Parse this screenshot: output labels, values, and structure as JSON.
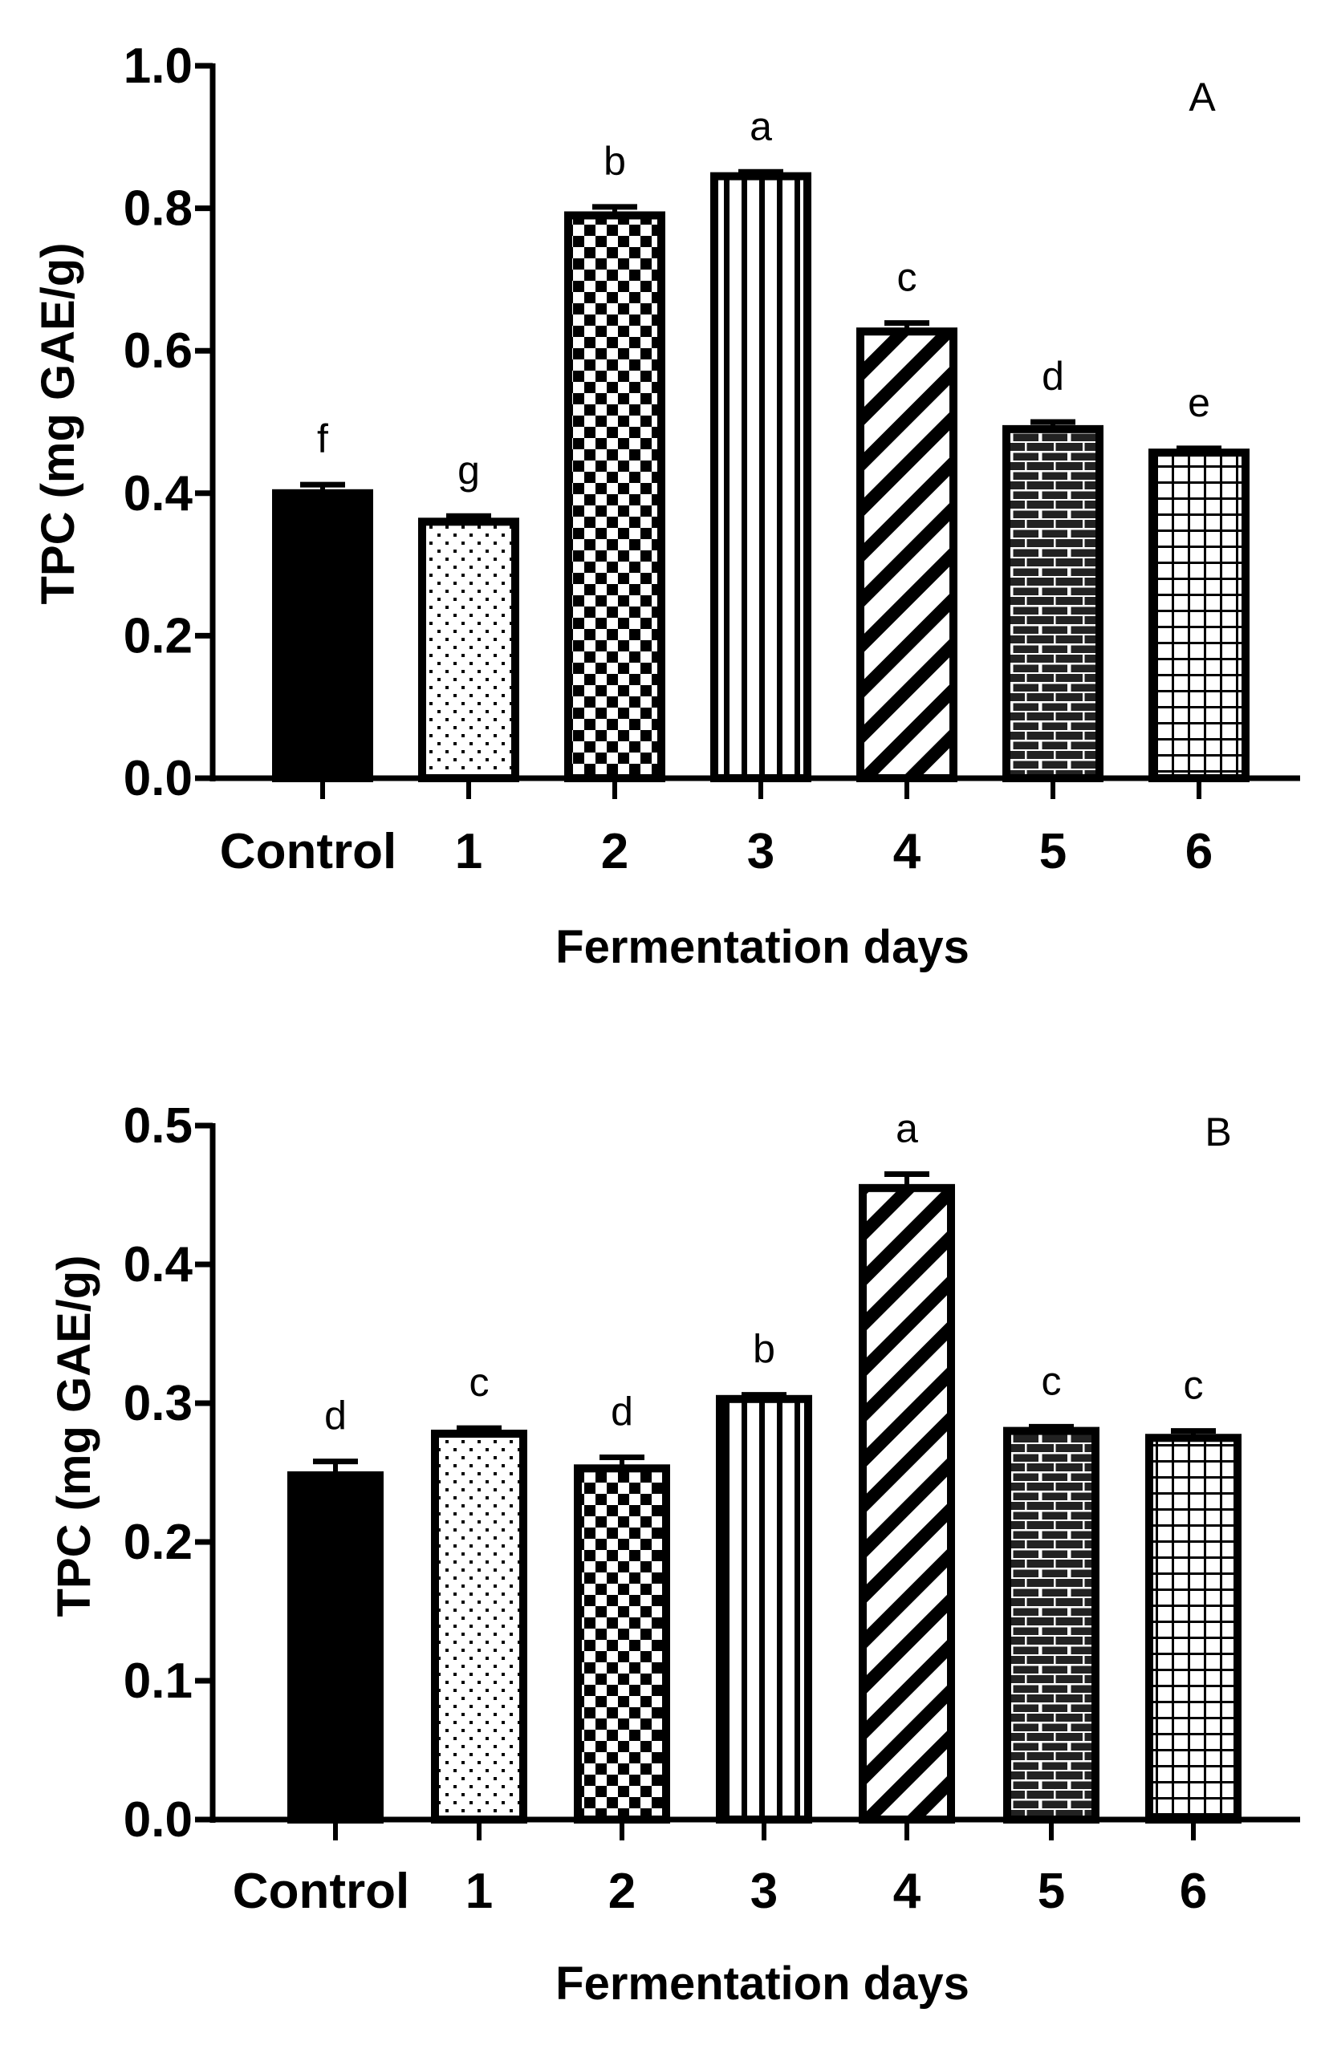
{
  "chart_data": [
    {
      "type": "bar",
      "panel": "A",
      "categories": [
        "Control",
        "1",
        "2",
        "3",
        "4",
        "5",
        "6"
      ],
      "values": [
        0.4,
        0.36,
        0.79,
        0.845,
        0.627,
        0.49,
        0.457
      ],
      "errors": [
        0.012,
        0.008,
        0.012,
        0.006,
        0.012,
        0.01,
        0.006
      ],
      "significance": [
        "f",
        "g",
        "b",
        "a",
        "c",
        "d",
        "e"
      ],
      "patterns": [
        "solid",
        "dots",
        "checker",
        "vstripes",
        "diagonal",
        "brick",
        "grid"
      ],
      "ylim": [
        0,
        1.0
      ],
      "yticks": [
        "0.0",
        "0.2",
        "0.4",
        "0.6",
        "0.8",
        "1.0"
      ],
      "ytick_values": [
        0,
        0.2,
        0.4,
        0.6,
        0.8,
        1.0
      ],
      "xlabel": "Fermentation days",
      "ylabel": "TPC (mg GAE/g)"
    },
    {
      "type": "bar",
      "panel": "B",
      "categories": [
        "Control",
        "1",
        "2",
        "3",
        "4",
        "5",
        "6"
      ],
      "values": [
        0.248,
        0.278,
        0.253,
        0.303,
        0.455,
        0.28,
        0.275
      ],
      "errors": [
        0.01,
        0.004,
        0.008,
        0.003,
        0.01,
        0.003,
        0.005
      ],
      "significance": [
        "d",
        "c",
        "d",
        "b",
        "a",
        "c",
        "c"
      ],
      "patterns": [
        "solid",
        "dots",
        "checker",
        "vstripes",
        "diagonal",
        "brick",
        "grid"
      ],
      "ylim": [
        0,
        0.5
      ],
      "yticks": [
        "0.0",
        "0.1",
        "0.2",
        "0.3",
        "0.4",
        "0.5"
      ],
      "ytick_values": [
        0,
        0.1,
        0.2,
        0.3,
        0.4,
        0.5
      ],
      "xlabel": "Fermentation days",
      "ylabel": "TPC (mg GAE/g)"
    }
  ]
}
